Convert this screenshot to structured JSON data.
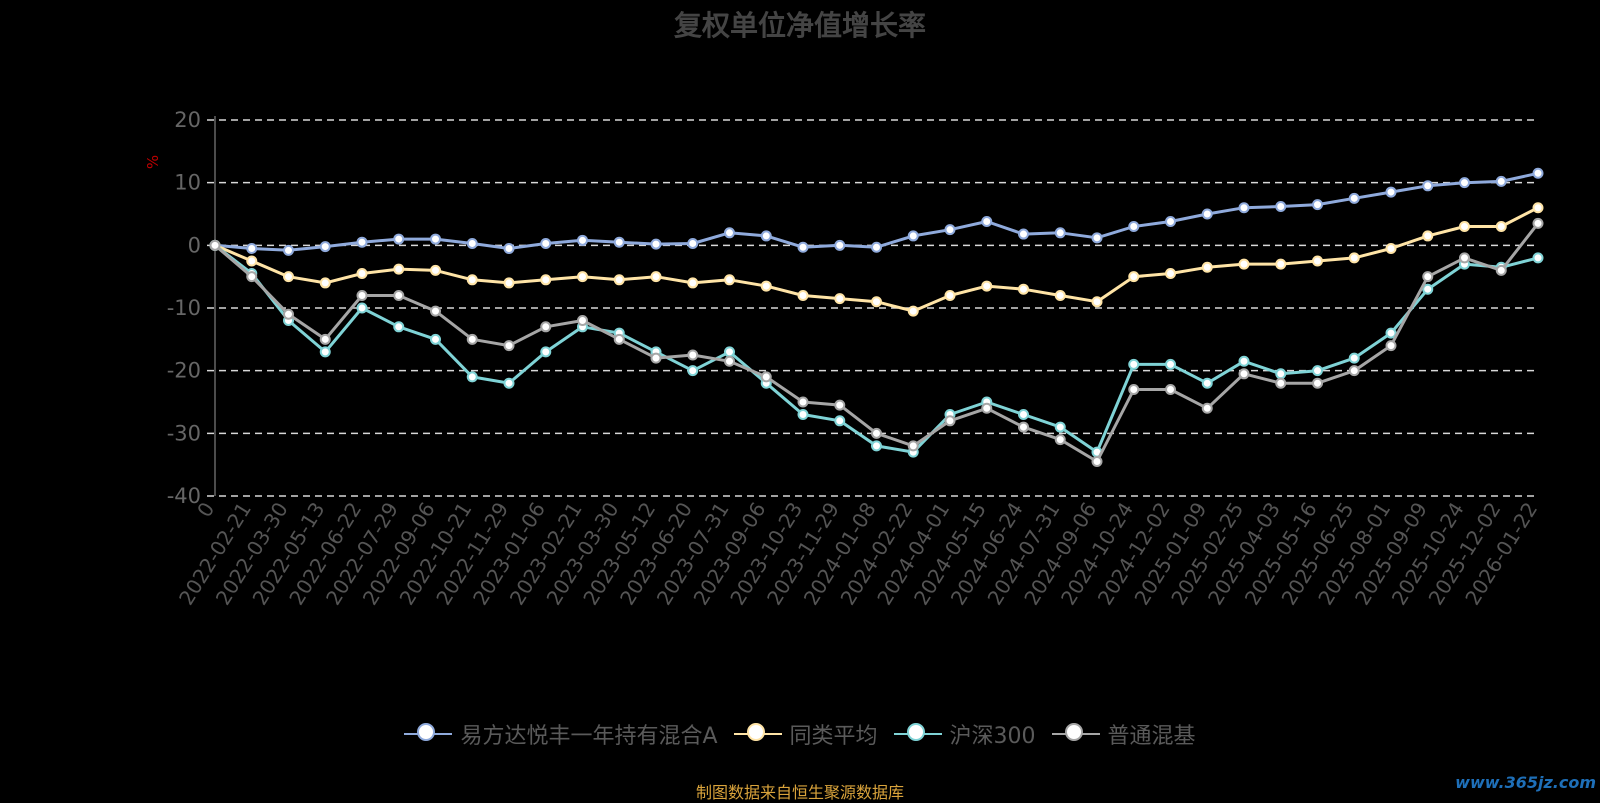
{
  "chart_data": {
    "type": "line",
    "title": "复权单位净值增长率",
    "ylabel": "%",
    "ylim": [
      -40,
      20
    ],
    "yticks": [
      20,
      10,
      0,
      -10,
      -20,
      -30,
      -40
    ],
    "grid": true,
    "legend_position": "bottom",
    "x": [
      "0",
      "2022-02-21",
      "2022-03-30",
      "2022-05-13",
      "2022-06-22",
      "2022-07-29",
      "2022-09-06",
      "2022-10-21",
      "2022-11-29",
      "2023-01-06",
      "2023-02-21",
      "2023-03-30",
      "2023-05-12",
      "2023-06-20",
      "2023-07-31",
      "2023-09-06",
      "2023-10-23",
      "2023-11-29",
      "2024-01-08",
      "2024-02-22",
      "2024-04-01",
      "2024-05-15",
      "2024-06-24",
      "2024-07-31",
      "2024-09-06",
      "2024-10-24",
      "2024-12-02",
      "2025-01-09",
      "2025-02-25",
      "2025-04-03",
      "2025-05-16",
      "2025-06-25",
      "2025-08-01",
      "2025-09-09",
      "2025-10-24",
      "2025-12-02",
      "2026-01-22"
    ],
    "series": [
      {
        "name": "易方达悦丰一年持有混合A",
        "color": "#8faadc",
        "values": [
          0,
          -0.5,
          -0.8,
          -0.2,
          0.5,
          1.0,
          1.0,
          0.3,
          -0.5,
          0.3,
          0.8,
          0.5,
          0.2,
          0.3,
          2.0,
          1.5,
          -0.3,
          0.0,
          -0.3,
          1.5,
          2.5,
          3.8,
          1.8,
          2.0,
          1.2,
          3.0,
          3.8,
          5.0,
          6.0,
          6.2,
          6.5,
          7.5,
          8.5,
          9.5,
          10.0,
          10.2,
          11.5
        ]
      },
      {
        "name": "同类平均",
        "color": "#ffe4a6",
        "values": [
          0,
          -2.5,
          -5.0,
          -6.0,
          -4.5,
          -3.8,
          -4.0,
          -5.5,
          -6.0,
          -5.5,
          -5.0,
          -5.5,
          -5.0,
          -6.0,
          -5.5,
          -6.5,
          -8.0,
          -8.5,
          -9.0,
          -10.5,
          -8.0,
          -6.5,
          -7.0,
          -8.0,
          -9.0,
          -5.0,
          -4.5,
          -3.5,
          -3.0,
          -3.0,
          -2.5,
          -2.0,
          -0.5,
          1.5,
          3.0,
          3.0,
          6.0
        ]
      },
      {
        "name": "沪深300",
        "color": "#7fd3d6",
        "values": [
          0,
          -4.5,
          -12.0,
          -17.0,
          -10.0,
          -13.0,
          -15.0,
          -21.0,
          -22.0,
          -17.0,
          -13.0,
          -14.0,
          -17.0,
          -20.0,
          -17.0,
          -22.0,
          -27.0,
          -28.0,
          -32.0,
          -33.0,
          -27.0,
          -25.0,
          -27.0,
          -29.0,
          -33.0,
          -19.0,
          -19.0,
          -22.0,
          -18.5,
          -20.5,
          -20.0,
          -18.0,
          -14.0,
          -7.0,
          -3.0,
          -3.5,
          -2.0
        ]
      },
      {
        "name": "普通混基",
        "color": "#a6a6a6",
        "values": [
          0,
          -5.0,
          -11.0,
          -15.0,
          -8.0,
          -8.0,
          -10.5,
          -15.0,
          -16.0,
          -13.0,
          -12.0,
          -15.0,
          -18.0,
          -17.5,
          -18.5,
          -21.0,
          -25.0,
          -25.5,
          -30.0,
          -32.0,
          -28.0,
          -26.0,
          -29.0,
          -31.0,
          -34.5,
          -23.0,
          -23.0,
          -26.0,
          -20.5,
          -22.0,
          -22.0,
          -20.0,
          -16.0,
          -5.0,
          -2.0,
          -4.0,
          3.5
        ]
      }
    ]
  },
  "footer": {
    "source": "制图数据来自恒生聚源数据库",
    "watermark": "www.365jz.com"
  }
}
